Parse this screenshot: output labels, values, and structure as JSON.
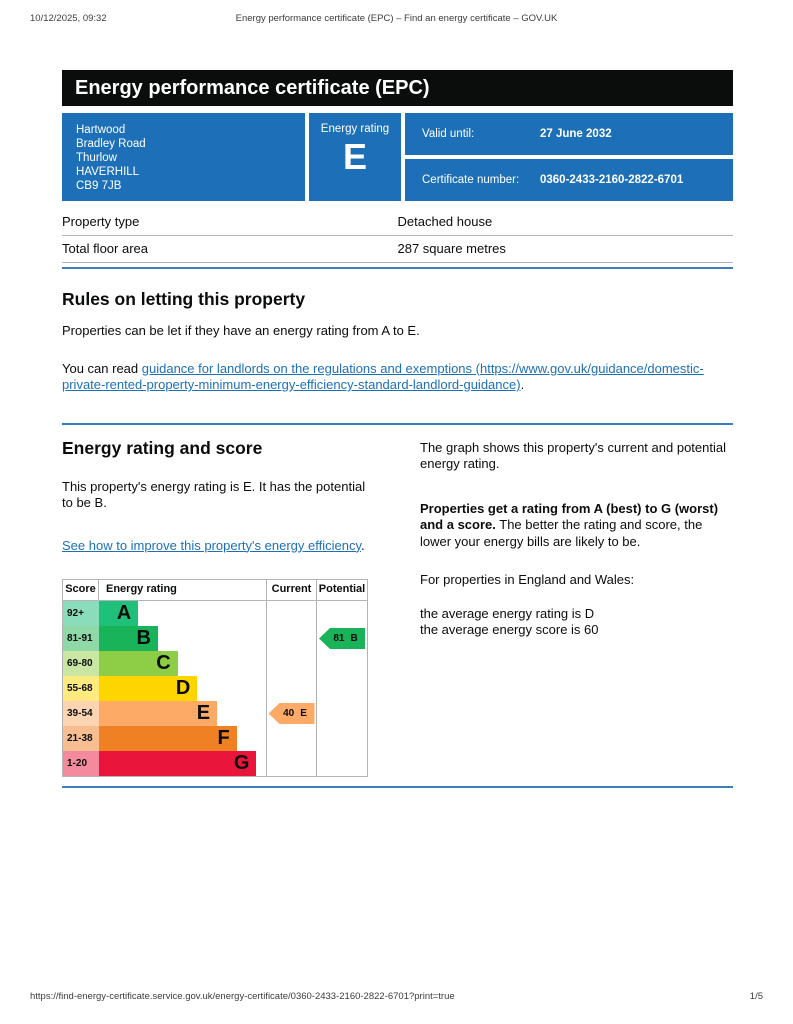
{
  "print_header": {
    "datetime": "10/12/2025, 09:32",
    "title": "Energy performance certificate (EPC) – Find an energy certificate – GOV.UK"
  },
  "print_footer": {
    "url": "https://find-energy-certificate.service.gov.uk/energy-certificate/0360-2433-2160-2822-6701?print=true",
    "page": "1/5"
  },
  "banner": {
    "title": "Energy performance certificate (EPC)"
  },
  "summary": {
    "address_lines": [
      "Hartwood",
      "Bradley Road",
      "Thurlow",
      "HAVERHILL",
      "CB9 7JB"
    ],
    "energy_rating_label": "Energy rating",
    "energy_rating_value": "E",
    "valid_until_label": "Valid until:",
    "valid_until_value": "27 June 2032",
    "certificate_number_label": "Certificate number:",
    "certificate_number_value": "0360-2433-2160-2822-6701"
  },
  "property_table": {
    "rows": [
      {
        "label": "Property type",
        "value": "Detached house"
      },
      {
        "label": "Total floor area",
        "value": "287 square metres"
      }
    ]
  },
  "rules_section": {
    "heading": "Rules on letting this property",
    "paragraph1": "Properties can be let if they have an energy rating from A to E.",
    "paragraph2_prefix": "You can read ",
    "link_text": "guidance for landlords on the regulations and exemptions (https://www.gov.uk/guidance/domestic-private-rented-property-minimum-energy-efficiency-standard-landlord-guidance)",
    "paragraph2_suffix": "."
  },
  "rating_section": {
    "heading": "Energy rating and score",
    "summary_text": "This property's energy rating is E. It has the potential to be B.",
    "improve_link_text": "See how to improve this property's energy efficiency",
    "improve_link_suffix": ".",
    "right_paragraph1": "The graph shows this property's current and potential energy rating.",
    "right_paragraph2_bold": "Properties get a rating from A (best) to G (worst) and a score.",
    "right_paragraph2_rest": " The better the rating and score, the lower your energy bills are likely to be.",
    "right_paragraph3": "For properties in England and Wales:",
    "right_average_line1": "the average energy rating is D",
    "right_average_line2": "the average energy score is 60"
  },
  "chart_data": {
    "type": "bar",
    "title": "Energy rating and score graph",
    "headers": {
      "score": "Score",
      "rating": "Energy rating",
      "current": "Current",
      "potential": "Potential"
    },
    "bands": [
      {
        "score_range": "92+",
        "letter": "A",
        "color": "#1ec07a",
        "tint": "#8bdcba"
      },
      {
        "score_range": "81-91",
        "letter": "B",
        "color": "#19b459",
        "tint": "#8fd9a9"
      },
      {
        "score_range": "69-80",
        "letter": "C",
        "color": "#8dce46",
        "tint": "#c9e7a3"
      },
      {
        "score_range": "55-68",
        "letter": "D",
        "color": "#ffd500",
        "tint": "#ffea80"
      },
      {
        "score_range": "39-54",
        "letter": "E",
        "color": "#fcaa65",
        "tint": "#fdd4b2"
      },
      {
        "score_range": "21-38",
        "letter": "F",
        "color": "#ef8023",
        "tint": "#f7bf91"
      },
      {
        "score_range": "1-20",
        "letter": "G",
        "color": "#e9153b",
        "tint": "#f48a9d"
      }
    ],
    "current": {
      "score": 40,
      "band": "E"
    },
    "potential": {
      "score": 81,
      "band": "B"
    }
  },
  "colors": {
    "govuk_blue": "#1d70b8",
    "banner_black": "#0b0c0c",
    "rule_blue": "#3d7dbb",
    "border_grey": "#b1b4b6"
  }
}
